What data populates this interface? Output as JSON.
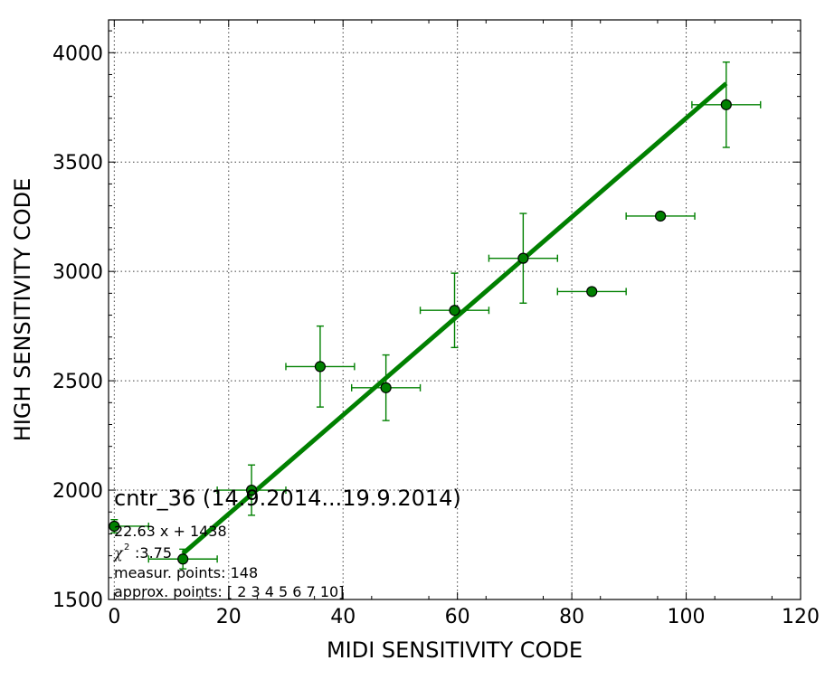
{
  "chart_data": {
    "type": "scatter",
    "xlabel": "MIDI SENSITIVITY CODE",
    "ylabel": "HIGH SENSITIVITY CODE",
    "xlim": [
      -1,
      120
    ],
    "ylim": [
      1500,
      4150
    ],
    "xticks": [
      0,
      20,
      40,
      60,
      80,
      100,
      120
    ],
    "yticks": [
      1500,
      2000,
      2500,
      3000,
      3500,
      4000
    ],
    "grid": true,
    "colors": {
      "series": "#008000",
      "marker_edge": "#000000"
    },
    "points": [
      {
        "x": 0,
        "y": 1835,
        "xerr": 6,
        "yerr": 30
      },
      {
        "x": 12,
        "y": 1685,
        "xerr": 6,
        "yerr": 45
      },
      {
        "x": 24,
        "y": 2000,
        "xerr": 6,
        "yerr": 115
      },
      {
        "x": 36,
        "y": 2565,
        "xerr": 6,
        "yerr": 185
      },
      {
        "x": 47.5,
        "y": 2468,
        "xerr": 6,
        "yerr": 150
      },
      {
        "x": 59.5,
        "y": 2822,
        "xerr": 6,
        "yerr": 170
      },
      {
        "x": 71.5,
        "y": 3060,
        "xerr": 6,
        "yerr": 205
      },
      {
        "x": 83.5,
        "y": 2908,
        "xerr": 6,
        "yerr": 0
      },
      {
        "x": 95.5,
        "y": 3253,
        "xerr": 6,
        "yerr": 0
      },
      {
        "x": 107,
        "y": 3762,
        "xerr": 6,
        "yerr": 195
      }
    ],
    "fit": {
      "slope": 22.63,
      "intercept": 1438,
      "x_range": [
        12,
        107
      ]
    },
    "annotations": {
      "title": "cntr_36 (14.9.2014...19.9.2014)",
      "equation": "22.63 x + 1438",
      "chi2_symbol": "χ",
      "chi2_value": ":3.75",
      "measur_points": "measur. points: 148",
      "approx_points": "approx. points: [ 2  3  4  5  6  7 10]"
    }
  }
}
